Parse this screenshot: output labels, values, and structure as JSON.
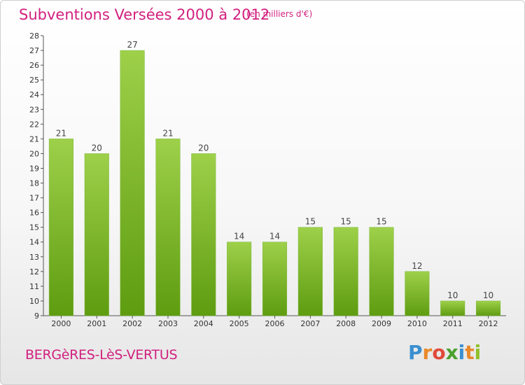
{
  "header": {
    "title": "Subventions Versées 2000 à 2012",
    "unit_note": "(en milliers d'€)"
  },
  "footer": {
    "place": "BERGèRES-LèS-VERTUS",
    "logo_letters": [
      "P",
      "r",
      "o",
      "x",
      "i",
      "t",
      "i"
    ],
    "logo_colors": [
      "#3a8fd0",
      "#e8892a",
      "#e04a3a",
      "#4aa02c",
      "#3a8fd0",
      "#e8892a",
      "#8fc02a"
    ]
  },
  "colors": {
    "bar_top": "#9ed04a",
    "bar_bottom": "#5e9c10",
    "title": "#d2207f"
  },
  "chart_data": {
    "type": "bar",
    "title": "Subventions Versées 2000 à 2012",
    "subtitle": "(en milliers d'€)",
    "categories": [
      "2000",
      "2001",
      "2002",
      "2003",
      "2004",
      "2005",
      "2006",
      "2007",
      "2008",
      "2009",
      "2010",
      "2011",
      "2012"
    ],
    "values": [
      21,
      20,
      27,
      21,
      20,
      14,
      14,
      15,
      15,
      15,
      12,
      10,
      10
    ],
    "ylim": [
      9,
      28
    ],
    "yticks": [
      9,
      10,
      11,
      12,
      13,
      14,
      15,
      16,
      17,
      18,
      19,
      20,
      21,
      22,
      23,
      24,
      25,
      26,
      27,
      28
    ],
    "grid": false,
    "legend": "none"
  }
}
